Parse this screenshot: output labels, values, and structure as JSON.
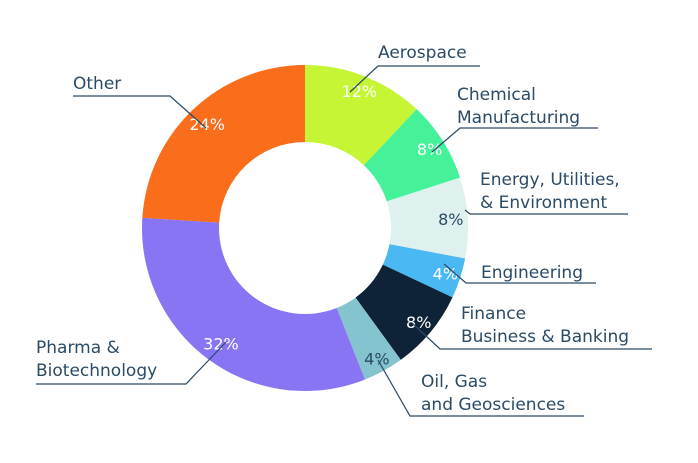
{
  "chart_data": {
    "type": "pie",
    "categories": [
      "Aerospace",
      "Chemical Manufacturing",
      "Energy, Utilities, & Environment",
      "Engineering",
      "Finance Business & Banking",
      "Oil, Gas and Geosciences",
      "Pharma & Biotechnology",
      "Other"
    ],
    "values": [
      12,
      8,
      8,
      4,
      8,
      4,
      32,
      24
    ],
    "value_labels": [
      "12%",
      "8%",
      "8%",
      "4%",
      "8%",
      "4%",
      "32%",
      "24%"
    ],
    "label_lines": [
      [
        "Aerospace"
      ],
      [
        "Chemical",
        "Manufacturing"
      ],
      [
        "Energy, Utilities,",
        "& Environment"
      ],
      [
        "Engineering"
      ],
      [
        "Finance",
        "Business & Banking"
      ],
      [
        "Oil, Gas",
        "and Geosciences"
      ],
      [
        "Pharma &",
        "Biotechnology"
      ],
      [
        "Other"
      ]
    ],
    "colors": [
      "#c6f536",
      "#45f29a",
      "#dff1ef",
      "#4ab8f3",
      "#0f2338",
      "#84c4cf",
      "#8775f3",
      "#fa6d1b"
    ],
    "donut": true,
    "legend": "none"
  }
}
